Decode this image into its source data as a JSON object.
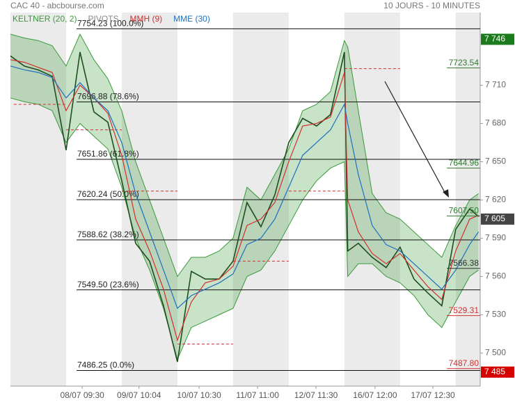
{
  "chart_data": {
    "type": "line",
    "title": "CAC 40 - abcbourse.com",
    "subtitle": "10 JOURS - 10 MINUTES",
    "x": [
      0,
      0.25,
      0.5,
      0.75,
      1,
      1.25,
      1.5,
      1.75,
      2,
      2.25,
      2.5,
      2.75,
      3,
      3.25,
      3.5,
      3.75,
      4,
      4.25,
      4.5,
      4.75,
      5,
      5.25,
      5.5,
      5.75,
      6,
      6.06,
      6.25,
      6.5,
      6.75,
      7,
      7.25,
      7.5,
      7.75,
      8,
      8.25,
      8.41
    ],
    "xlim": [
      0,
      8.44
    ],
    "xticks": [
      {
        "value": 1.29,
        "label": "08/07 09:30"
      },
      {
        "value": 2.31,
        "label": "09/07 10:04"
      },
      {
        "value": 3.39,
        "label": "10/07 10:30"
      },
      {
        "value": 4.44,
        "label": "11/07 11:00"
      },
      {
        "value": 5.49,
        "label": "12/07 11:30"
      },
      {
        "value": 6.55,
        "label": "16/07 12:00"
      },
      {
        "value": 7.59,
        "label": "17/07 12:30"
      }
    ],
    "ylim": [
      7474,
      7767
    ],
    "yticks": [
      {
        "value": 7500,
        "label": "7 500"
      },
      {
        "value": 7530,
        "label": "7 530"
      },
      {
        "value": 7560,
        "label": "7 560"
      },
      {
        "value": 7590,
        "label": "7 590"
      },
      {
        "value": 7620,
        "label": "7 620"
      },
      {
        "value": 7650,
        "label": "7 650"
      },
      {
        "value": 7680,
        "label": "7 680"
      },
      {
        "value": 7710,
        "label": "7 710"
      }
    ],
    "keltner": {
      "name": "KELTNER (20, 2)",
      "color": "#3a9a3a",
      "upper": [
        7750,
        7747,
        7745,
        7741,
        7725,
        7750,
        7730,
        7715,
        7690,
        7650,
        7620,
        7590,
        7560,
        7575,
        7575,
        7580,
        7590,
        7630,
        7620,
        7640,
        7660,
        7690,
        7695,
        7705,
        7745,
        7740,
        7690,
        7625,
        7610,
        7605,
        7595,
        7585,
        7575,
        7600,
        7620,
        7625
      ],
      "lower": [
        7700,
        7697,
        7695,
        7690,
        7665,
        7680,
        7670,
        7660,
        7630,
        7590,
        7565,
        7535,
        7495,
        7520,
        7525,
        7530,
        7535,
        7560,
        7565,
        7580,
        7600,
        7620,
        7635,
        7645,
        7650,
        7560,
        7570,
        7570,
        7560,
        7555,
        7545,
        7530,
        7520,
        7540,
        7560,
        7565
      ]
    },
    "pivots": {
      "name": "PIVOTS",
      "color": "#d32f2f",
      "segments": [
        {
          "start": 0.06,
          "end": 1,
          "value": 7695
        },
        {
          "start": 1,
          "end": 2,
          "value": 7675
        },
        {
          "start": 2,
          "end": 3,
          "value": 7627
        },
        {
          "start": 3,
          "end": 4,
          "value": 7507
        },
        {
          "start": 4,
          "end": 5,
          "value": 7572
        },
        {
          "start": 5,
          "end": 6,
          "value": 7627
        },
        {
          "start": 6,
          "end": 7,
          "value": 7723
        }
      ]
    },
    "series": [
      {
        "color": "#1e4d1e",
        "values": [
          7733,
          7725,
          7722,
          7717,
          7659,
          7736,
          7689,
          7681,
          7635,
          7586,
          7572,
          7537,
          7493,
          7564,
          7558,
          7558,
          7572,
          7618,
          7599,
          7624,
          7665,
          7684,
          7678,
          7687,
          7736,
          7580,
          7586,
          7575,
          7567,
          7583,
          7558,
          7547,
          7537,
          7597,
          7613,
          7607
        ]
      },
      {
        "name": "MMH (9)",
        "color": "#d32f2f",
        "values": [
          7730,
          7728,
          7724,
          7720,
          7690,
          7710,
          7700,
          7688,
          7655,
          7605,
          7580,
          7550,
          7510,
          7540,
          7555,
          7558,
          7568,
          7600,
          7605,
          7618,
          7650,
          7678,
          7680,
          7685,
          7720,
          7620,
          7595,
          7578,
          7570,
          7578,
          7565,
          7552,
          7542,
          7580,
          7605,
          7608
        ]
      },
      {
        "name": "MME (30)",
        "color": "#1f6fbf",
        "values": [
          7725,
          7722,
          7720,
          7716,
          7700,
          7712,
          7700,
          7690,
          7665,
          7625,
          7595,
          7565,
          7535,
          7545,
          7550,
          7555,
          7562,
          7585,
          7590,
          7605,
          7630,
          7655,
          7665,
          7675,
          7695,
          7680,
          7640,
          7600,
          7585,
          7580,
          7570,
          7560,
          7550,
          7565,
          7585,
          7595
        ]
      }
    ],
    "levels": [
      {
        "value": 7754.23,
        "label": "7754.23 (100.0%)"
      },
      {
        "value": 7696.88,
        "label": "7696.88 (78.6%)"
      },
      {
        "value": 7651.86,
        "label": "7651.86 (61.8%)"
      },
      {
        "value": 7620.24,
        "label": "7620.24 (50.0%)"
      },
      {
        "value": 7588.62,
        "label": "7588.62 (38.2%)"
      },
      {
        "value": 7549.5,
        "label": "7549.50 (23.6%)"
      },
      {
        "value": 7486.25,
        "label": "7486.25 (0.0%)"
      }
    ],
    "annotations": [
      {
        "value": 7723.54,
        "label": "7723.54",
        "color": "#2e7d32"
      },
      {
        "value": 7644.96,
        "label": "7644.96",
        "color": "#2e7d32"
      },
      {
        "value": 7607.5,
        "label": "7607.50",
        "color": "#2e7d32"
      },
      {
        "value": 7566.38,
        "label": "7566.38",
        "color": "#333333"
      },
      {
        "value": 7529.31,
        "label": "7529.31",
        "color": "#d32f2f"
      },
      {
        "value": 7487.8,
        "label": "7487.80",
        "color": "#d32f2f"
      }
    ],
    "price_tags": [
      {
        "value": 7746,
        "label": "7 746",
        "color": "#1b7a1b"
      },
      {
        "value": 7605,
        "label": "7 605",
        "color": "#444444"
      },
      {
        "value": 7485,
        "label": "7 485",
        "color": "#d50000"
      }
    ]
  }
}
